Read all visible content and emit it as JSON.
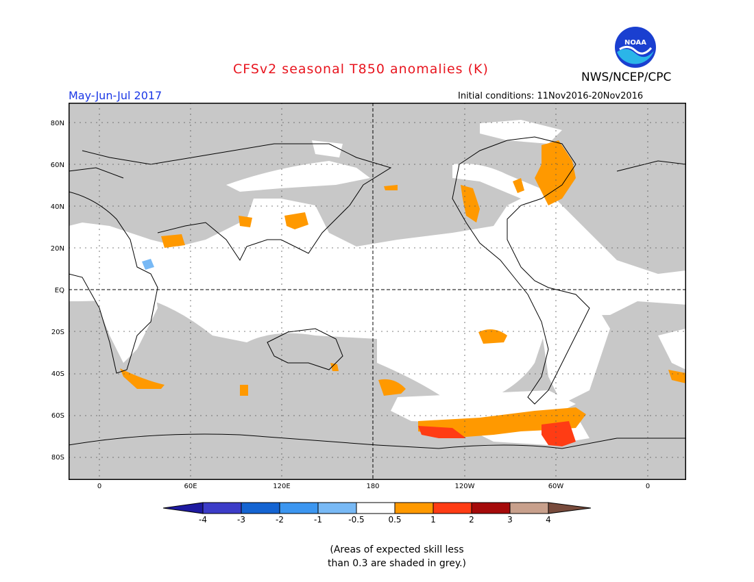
{
  "header": {
    "title": "CFSv2 seasonal T850 anomalies (K)",
    "period": "May-Jun-Jul 2017",
    "initial_conditions": "Initial conditions: 11Nov2016-20Nov2016",
    "agency": "NWS/NCEP/CPC",
    "logo_text": "NOAA"
  },
  "axes": {
    "lat_labels": [
      "80N",
      "60N",
      "40N",
      "20N",
      "EQ",
      "20S",
      "40S",
      "60S",
      "80S"
    ],
    "lon_labels": [
      "0",
      "60E",
      "120E",
      "180",
      "120W",
      "60W",
      "0"
    ]
  },
  "colorbar": {
    "labels": [
      "-4",
      "-3",
      "-2",
      "-1",
      "-0.5",
      "0.5",
      "1",
      "2",
      "3",
      "4"
    ],
    "colors": [
      "#1e1aa0",
      "#3c3cc8",
      "#1464d2",
      "#3c96f0",
      "#78b9f5",
      "#ffffff",
      "#ff9900",
      "#ff3c14",
      "#a50a0a",
      "#c8a08c",
      "#784b3c"
    ]
  },
  "note": {
    "line1": "(Areas of expected skill less",
    "line2": "than 0.3 are shaded in grey.)"
  },
  "legend_semantics": {
    "grey": "#c8c8c8",
    "warm_05_1": "#ff9900",
    "warm_1_2": "#ff3c14",
    "cool_neg1_neg05": "#78b9f5"
  }
}
